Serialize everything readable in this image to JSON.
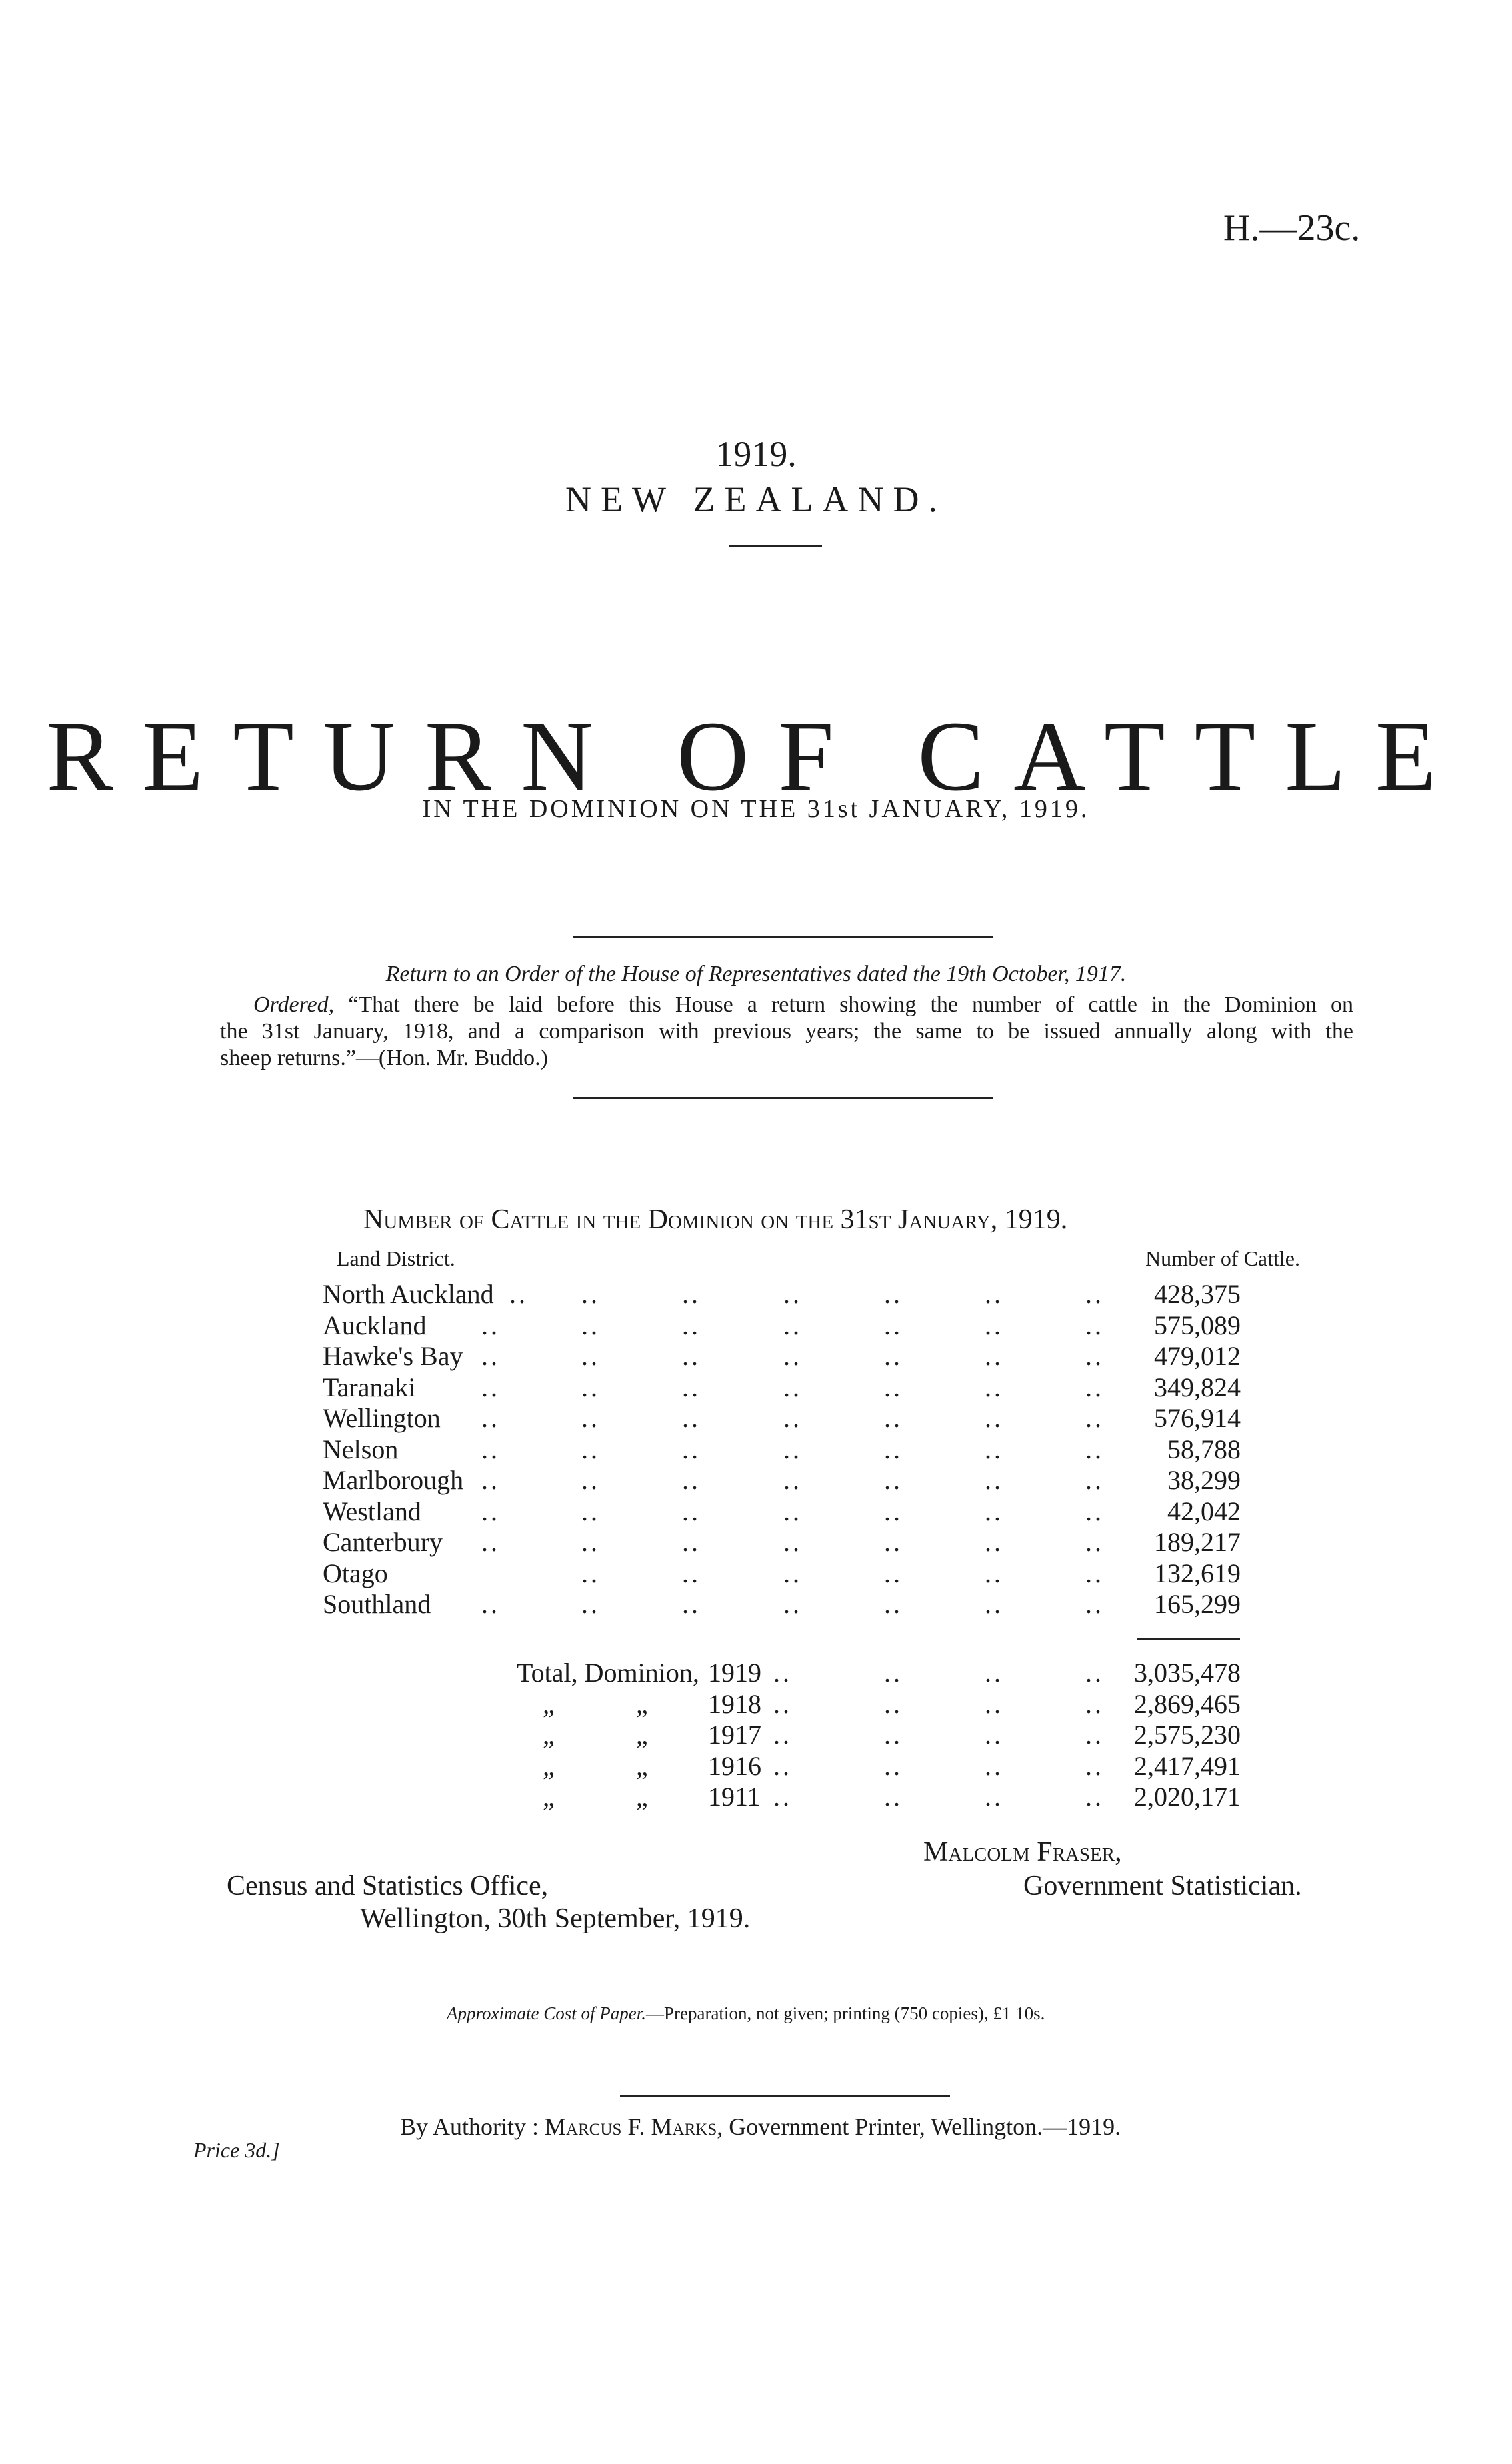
{
  "header": {
    "paper_number": "H.—23c."
  },
  "title_block": {
    "year": "1919.",
    "country": "NEW ZEALAND.",
    "title": "RETURN OF CATTLE",
    "subtitle": "IN THE DOMINION ON THE 31st JANUARY, 1919."
  },
  "order": {
    "heading": "Return to an Order of the House of Representatives dated the 19th October, 1917.",
    "ordered_label": "Ordered,",
    "text_line1": "“That there be laid before this House a return showing the number of cattle in the Dominion on",
    "text_line2": "the 31st January, 1918, and a comparison with previous years; the same to be issued annually along with the",
    "text_line3": "sheep returns.”—(Hon. Mr. Buddo.)"
  },
  "table": {
    "title": "Number of Cattle in the Dominion on the 31st January, 1919.",
    "col_district": "Land District.",
    "col_number": "Number of Cattle.",
    "rows": [
      {
        "district": "North Auckland",
        "count": "428,375"
      },
      {
        "district": "Auckland",
        "count": "575,089"
      },
      {
        "district": "Hawke's Bay",
        "count": "479,012"
      },
      {
        "district": "Taranaki",
        "count": "349,824"
      },
      {
        "district": "Wellington",
        "count": "576,914"
      },
      {
        "district": "Nelson",
        "count": "58,788"
      },
      {
        "district": "Marlborough",
        "count": "38,299"
      },
      {
        "district": "Westland",
        "count": "42,042"
      },
      {
        "district": "Canterbury",
        "count": "189,217"
      },
      {
        "district": "Otago",
        "count": "132,619"
      },
      {
        "district": "Southland",
        "count": "165,299"
      }
    ],
    "totals_label": "Total, Dominion,",
    "ditto": "„",
    "totals": [
      {
        "year": "1919",
        "count": "3,035,478"
      },
      {
        "year": "1918",
        "count": "2,869,465"
      },
      {
        "year": "1917",
        "count": "2,575,230"
      },
      {
        "year": "1916",
        "count": "2,417,491"
      },
      {
        "year": "1911",
        "count": "2,020,171"
      }
    ]
  },
  "signature": {
    "name": "Malcolm Fraser,",
    "role": "Government Statistician.",
    "office": "Census and Statistics Office,",
    "place_date": "Wellington, 30th September, 1919."
  },
  "cost": {
    "label": "Approximate Cost of Paper.",
    "text": "—Preparation, not given; printing (750 copies), £1 10s."
  },
  "imprint": {
    "text_prefix": "By Authority : ",
    "printer": "Marcus F. Marks",
    "text_suffix": ", Government Printer, Wellington.—1919."
  },
  "price": "Price 3d.]"
}
